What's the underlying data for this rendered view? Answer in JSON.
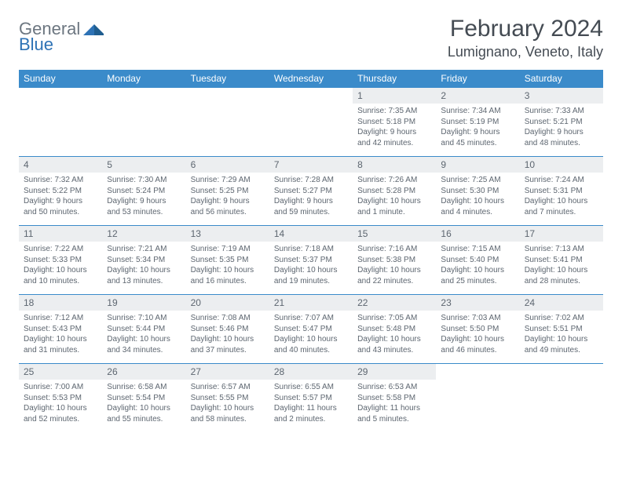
{
  "brand": {
    "part1": "General",
    "part2": "Blue"
  },
  "title": "February 2024",
  "location": "Lumignano, Veneto, Italy",
  "colors": {
    "header_bg": "#3b8bca",
    "header_text": "#ffffff",
    "daynum_bg": "#eceef0",
    "text": "#5d6670",
    "row_border": "#3b8bca",
    "brand_gray": "#6c7680",
    "brand_blue": "#2d72b5",
    "title_color": "#444b53"
  },
  "weekdays": [
    "Sunday",
    "Monday",
    "Tuesday",
    "Wednesday",
    "Thursday",
    "Friday",
    "Saturday"
  ],
  "weeks": [
    [
      null,
      null,
      null,
      null,
      {
        "n": "1",
        "sr": "7:35 AM",
        "ss": "5:18 PM",
        "dl": "9 hours and 42 minutes."
      },
      {
        "n": "2",
        "sr": "7:34 AM",
        "ss": "5:19 PM",
        "dl": "9 hours and 45 minutes."
      },
      {
        "n": "3",
        "sr": "7:33 AM",
        "ss": "5:21 PM",
        "dl": "9 hours and 48 minutes."
      }
    ],
    [
      {
        "n": "4",
        "sr": "7:32 AM",
        "ss": "5:22 PM",
        "dl": "9 hours and 50 minutes."
      },
      {
        "n": "5",
        "sr": "7:30 AM",
        "ss": "5:24 PM",
        "dl": "9 hours and 53 minutes."
      },
      {
        "n": "6",
        "sr": "7:29 AM",
        "ss": "5:25 PM",
        "dl": "9 hours and 56 minutes."
      },
      {
        "n": "7",
        "sr": "7:28 AM",
        "ss": "5:27 PM",
        "dl": "9 hours and 59 minutes."
      },
      {
        "n": "8",
        "sr": "7:26 AM",
        "ss": "5:28 PM",
        "dl": "10 hours and 1 minute."
      },
      {
        "n": "9",
        "sr": "7:25 AM",
        "ss": "5:30 PM",
        "dl": "10 hours and 4 minutes."
      },
      {
        "n": "10",
        "sr": "7:24 AM",
        "ss": "5:31 PM",
        "dl": "10 hours and 7 minutes."
      }
    ],
    [
      {
        "n": "11",
        "sr": "7:22 AM",
        "ss": "5:33 PM",
        "dl": "10 hours and 10 minutes."
      },
      {
        "n": "12",
        "sr": "7:21 AM",
        "ss": "5:34 PM",
        "dl": "10 hours and 13 minutes."
      },
      {
        "n": "13",
        "sr": "7:19 AM",
        "ss": "5:35 PM",
        "dl": "10 hours and 16 minutes."
      },
      {
        "n": "14",
        "sr": "7:18 AM",
        "ss": "5:37 PM",
        "dl": "10 hours and 19 minutes."
      },
      {
        "n": "15",
        "sr": "7:16 AM",
        "ss": "5:38 PM",
        "dl": "10 hours and 22 minutes."
      },
      {
        "n": "16",
        "sr": "7:15 AM",
        "ss": "5:40 PM",
        "dl": "10 hours and 25 minutes."
      },
      {
        "n": "17",
        "sr": "7:13 AM",
        "ss": "5:41 PM",
        "dl": "10 hours and 28 minutes."
      }
    ],
    [
      {
        "n": "18",
        "sr": "7:12 AM",
        "ss": "5:43 PM",
        "dl": "10 hours and 31 minutes."
      },
      {
        "n": "19",
        "sr": "7:10 AM",
        "ss": "5:44 PM",
        "dl": "10 hours and 34 minutes."
      },
      {
        "n": "20",
        "sr": "7:08 AM",
        "ss": "5:46 PM",
        "dl": "10 hours and 37 minutes."
      },
      {
        "n": "21",
        "sr": "7:07 AM",
        "ss": "5:47 PM",
        "dl": "10 hours and 40 minutes."
      },
      {
        "n": "22",
        "sr": "7:05 AM",
        "ss": "5:48 PM",
        "dl": "10 hours and 43 minutes."
      },
      {
        "n": "23",
        "sr": "7:03 AM",
        "ss": "5:50 PM",
        "dl": "10 hours and 46 minutes."
      },
      {
        "n": "24",
        "sr": "7:02 AM",
        "ss": "5:51 PM",
        "dl": "10 hours and 49 minutes."
      }
    ],
    [
      {
        "n": "25",
        "sr": "7:00 AM",
        "ss": "5:53 PM",
        "dl": "10 hours and 52 minutes."
      },
      {
        "n": "26",
        "sr": "6:58 AM",
        "ss": "5:54 PM",
        "dl": "10 hours and 55 minutes."
      },
      {
        "n": "27",
        "sr": "6:57 AM",
        "ss": "5:55 PM",
        "dl": "10 hours and 58 minutes."
      },
      {
        "n": "28",
        "sr": "6:55 AM",
        "ss": "5:57 PM",
        "dl": "11 hours and 2 minutes."
      },
      {
        "n": "29",
        "sr": "6:53 AM",
        "ss": "5:58 PM",
        "dl": "11 hours and 5 minutes."
      },
      null,
      null
    ]
  ],
  "labels": {
    "sunrise": "Sunrise:",
    "sunset": "Sunset:",
    "daylight": "Daylight:"
  }
}
